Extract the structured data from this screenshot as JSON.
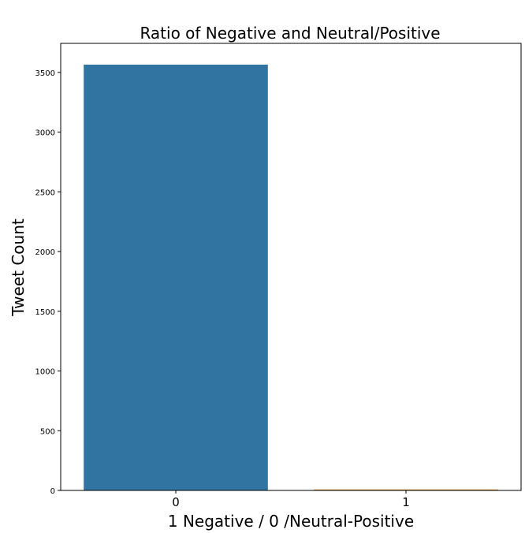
{
  "chart_data": {
    "type": "bar",
    "title": "Ratio of Negative and Neutral/Positive",
    "xlabel": "1 Negative / 0 /Neutral-Positive",
    "ylabel": "Tweet Count",
    "categories": [
      "0",
      "1"
    ],
    "values": [
      3565,
      8
    ],
    "colors": [
      "#3274a1",
      "#e1812c"
    ],
    "ylim": [
      0,
      3743
    ],
    "yticks": [
      0,
      500,
      1000,
      1500,
      2000,
      2500,
      3000,
      3500
    ],
    "grid": false
  }
}
